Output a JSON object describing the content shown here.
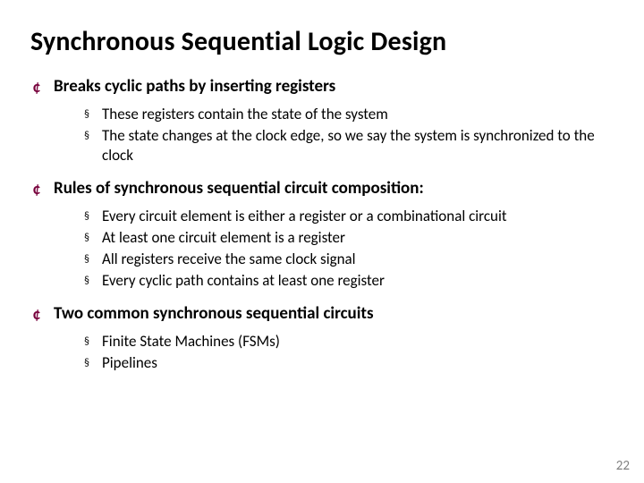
{
  "title": "Synchronous Sequential Logic Design",
  "page_number": "22",
  "colors": {
    "l1_bullet": "#77003b",
    "text": "#000000",
    "page_num": "#808080",
    "background": "#ffffff"
  },
  "typography": {
    "title_fontsize": 30,
    "l1_fontsize": 19,
    "l2_fontsize": 17,
    "font_family": "Calibri"
  },
  "bullets": {
    "l1_glyph": "¢",
    "l2_glyph": "§"
  },
  "outline": [
    {
      "text": "Breaks cyclic paths by inserting registers",
      "children": [
        "These registers contain the state of the system",
        "The state changes at the clock edge, so we say the system is synchronized to the clock"
      ]
    },
    {
      "text": "Rules of synchronous sequential circuit composition:",
      "children": [
        "Every circuit element is either a register or a combinational circuit",
        "At least one circuit element is a register",
        "All registers receive the same clock signal",
        "Every cyclic path contains at least one register"
      ]
    },
    {
      "text": "Two common synchronous sequential circuits",
      "children": [
        "Finite State Machines (FSMs)",
        "Pipelines"
      ]
    }
  ]
}
